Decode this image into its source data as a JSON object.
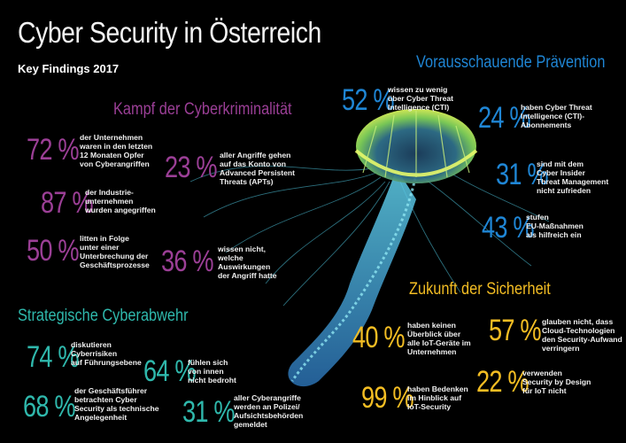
{
  "header": {
    "title": "Cyber Security in Österreich",
    "subtitle": "Key Findings 2017"
  },
  "colors": {
    "background": "#000000",
    "kampf": "#9b3f96",
    "praevention": "#1f86d5",
    "strategisch": "#2fb8ac",
    "zukunft": "#f3bd23"
  },
  "sections": {
    "kampf": {
      "title": "Kampf der Cyberkriminalität",
      "items": [
        {
          "pct": "72 %",
          "text": [
            "der Unternehmen",
            "waren in den letzten",
            "12 Monaten Opfer",
            "von Cyberangriffen"
          ]
        },
        {
          "pct": "87 %",
          "text": [
            "der Industrie-",
            "unternehmen",
            "wurden angegriffen"
          ]
        },
        {
          "pct": "50 %",
          "text": [
            "litten in Folge",
            "unter einer",
            "Unterbrechung der",
            "Geschäftsprozesse"
          ]
        },
        {
          "pct": "23 %",
          "text": [
            "aller Angriffe gehen",
            "auf das Konto von",
            "Advanced Persistent",
            "Threats (APTs)"
          ]
        },
        {
          "pct": "36 %",
          "text": [
            "wissen nicht,",
            "welche",
            "Auswirkungen",
            "der Angriff hatte"
          ]
        }
      ]
    },
    "praevention": {
      "title": "Vorausschauende Prävention",
      "items": [
        {
          "pct": "52 %",
          "text": [
            "wissen zu wenig",
            "über Cyber Threat",
            "Intelligence (CTI)"
          ]
        },
        {
          "pct": "24 %",
          "text": [
            "haben Cyber Threat",
            "Intelligence (CTI)-",
            "Abonnements"
          ]
        },
        {
          "pct": "31 %",
          "text": [
            "sind mit dem",
            "Cyber Insider",
            "Threat Management",
            "nicht zufrieden"
          ]
        },
        {
          "pct": "43 %",
          "text": [
            "stufen",
            "EU-Maßnahmen",
            "als hilfreich ein"
          ]
        }
      ]
    },
    "strategisch": {
      "title": "Strategische Cyberabwehr",
      "items": [
        {
          "pct": "74 %",
          "text": [
            "diskutieren",
            "Cyberrisiken",
            "auf Führungsebene"
          ]
        },
        {
          "pct": "68 %",
          "text": [
            "der Geschäftsführer",
            "betrachten Cyber",
            "Security als technische",
            "Angelegenheit"
          ]
        },
        {
          "pct": "64 %",
          "text": [
            "fühlen sich",
            "von innen",
            "nicht bedroht"
          ]
        },
        {
          "pct": "31 %",
          "text": [
            "aller Cyberangriffe",
            "werden an Polizei/",
            "Aufsichtsbehörden",
            "gemeldet"
          ]
        }
      ]
    },
    "zukunft": {
      "title": "Zukunft der Sicherheit",
      "items": [
        {
          "pct": "40 %",
          "text": [
            "haben keinen",
            "Überblick über",
            "alle IoT-Geräte im",
            "Unternehmen"
          ]
        },
        {
          "pct": "57 %",
          "text": [
            "glauben nicht, dass",
            "Cloud-Technologien",
            "den Security-Aufwand",
            "verringern"
          ]
        },
        {
          "pct": "99 %",
          "text": [
            "haben Bedenken",
            "im Hinblick auf",
            "IoT-Security"
          ]
        },
        {
          "pct": "22 %",
          "text": [
            "verwenden",
            "Security by Design",
            "für IoT nicht"
          ]
        }
      ]
    }
  }
}
